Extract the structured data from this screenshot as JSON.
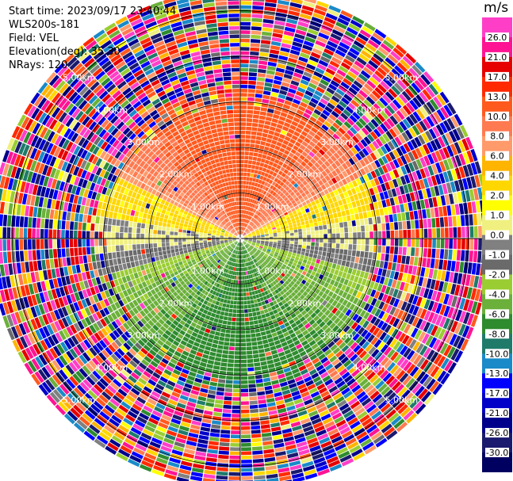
{
  "header": {
    "start_time": "Start time: 2023/09/17 23:40:44",
    "instrument": "WLS200s-181",
    "field": "Field: VEL",
    "elevation": "Elevation(deg): 35.30",
    "nrays": "NRays: 120"
  },
  "chart_data": {
    "type": "heatmap",
    "subtype": "polar-ppi",
    "field": "VEL",
    "units": "m/s",
    "nrays": 120,
    "range_rings_km": [
      1.0,
      2.0,
      3.0,
      4.0,
      5.0
    ],
    "range_labels": [
      "1.00km",
      "2.00km",
      "3.00km",
      "4.00km",
      "5.00km"
    ],
    "max_range_km": 5.5,
    "spoke_angles_deg": [
      0,
      30,
      60,
      90,
      120,
      150,
      180,
      210,
      240,
      270,
      300,
      330
    ],
    "pattern_description_values": {
      "north_sector": [
        6.0,
        13.0
      ],
      "east_west_sector": [
        1.0,
        4.0
      ],
      "south_sector": [
        -8.0,
        -1.0
      ],
      "outer_ring_noise_km": 3.2
    },
    "colorbar": {
      "title": "m/s",
      "min": -30.0,
      "max": 30.0,
      "labels": [
        "26.0",
        "21.0",
        "17.0",
        "13.0",
        "10.0",
        "8.0",
        "6.0",
        "4.0",
        "2.0",
        "1.0",
        "0.0",
        "-1.0",
        "-2.0",
        "-4.0",
        "-6.0",
        "-8.0",
        "-10.0",
        "-13.0",
        "-17.0",
        "-21.0",
        "-26.0",
        "-30.0"
      ],
      "colors": [
        "#ff3ec8",
        "#ff1493",
        "#e60000",
        "#ff2a00",
        "#ff5a1e",
        "#ff7a50",
        "#ff9a6a",
        "#ffb400",
        "#ffd700",
        "#ffff00",
        "#f0f080",
        "#808080",
        "#6a6a6a",
        "#9acd32",
        "#6bb03a",
        "#2e8b2e",
        "#1f7a6a",
        "#1a8ac8",
        "#0000ff",
        "#0000c8",
        "#00008b",
        "#1a1a6e",
        "#000060"
      ]
    }
  }
}
